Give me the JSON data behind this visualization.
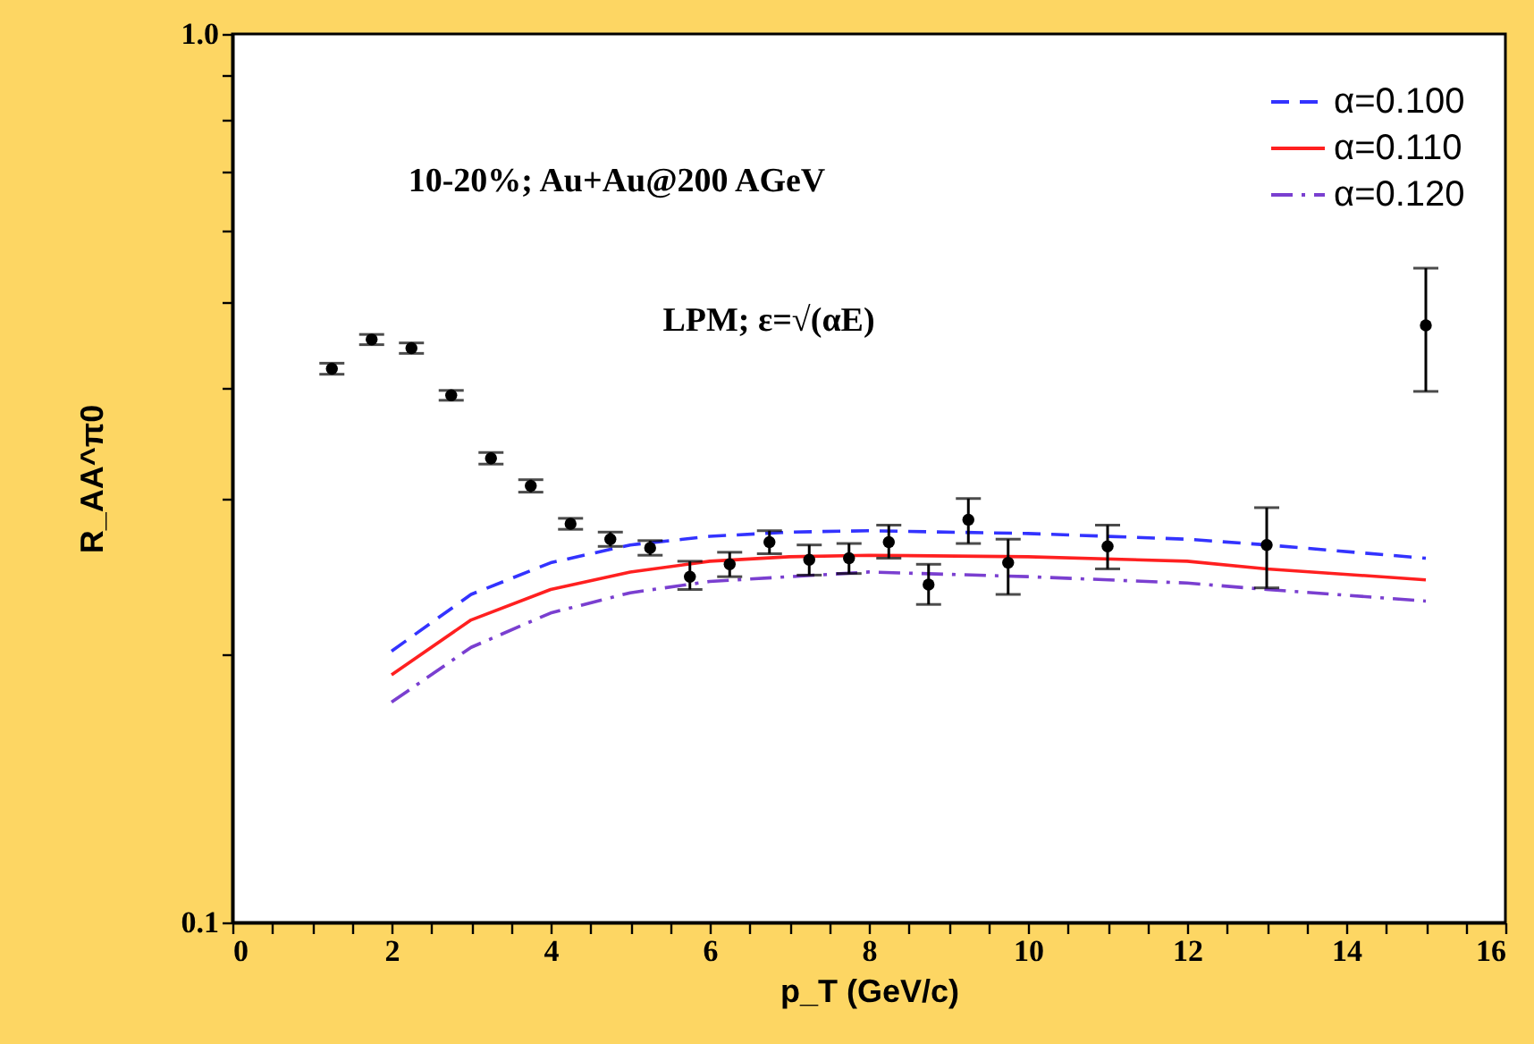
{
  "chart_data": {
    "type": "line",
    "xlabel": "p_T (GeV/c)",
    "ylabel": "R_AA^π0",
    "annotations": [
      "10-20%; Au+Au@200 AGeV",
      "LPM; ε=√(αE)"
    ],
    "xlim": [
      0,
      16
    ],
    "ylim": [
      0.1,
      1.0
    ],
    "log": "y",
    "grid": false,
    "legend": "top right",
    "xticks": [
      0,
      {
        "value": 0.5,
        "label": null
      },
      {
        "value": 1,
        "label": null
      },
      {
        "value": 1.5,
        "label": null
      },
      2,
      {
        "value": 2.5,
        "label": null
      },
      {
        "value": 3,
        "label": null
      },
      {
        "value": 3.5,
        "label": null
      },
      4,
      {
        "value": 4.5,
        "label": null
      },
      {
        "value": 5,
        "label": null
      },
      {
        "value": 5.5,
        "label": null
      },
      6,
      {
        "value": 6.5,
        "label": null
      },
      {
        "value": 7,
        "label": null
      },
      {
        "value": 7.5,
        "label": null
      },
      8,
      {
        "value": 8.5,
        "label": null
      },
      {
        "value": 9,
        "label": null
      },
      {
        "value": 9.5,
        "label": null
      },
      10,
      {
        "value": 10.5,
        "label": null
      },
      {
        "value": 11,
        "label": null
      },
      {
        "value": 11.5,
        "label": null
      },
      12,
      {
        "value": 12.5,
        "label": null
      },
      {
        "value": 13,
        "label": null
      },
      {
        "value": 13.5,
        "label": null
      },
      14,
      {
        "value": 14.5,
        "label": null
      },
      {
        "value": 15,
        "label": null
      },
      {
        "value": 15.5,
        "label": null
      },
      16
    ],
    "yticks": [
      {
        "value": 0.1,
        "label": "0.1"
      },
      {
        "value": 0.2,
        "label": null
      },
      {
        "value": 0.3,
        "label": null
      },
      {
        "value": 0.4,
        "label": null
      },
      {
        "value": 0.5,
        "label": null
      },
      {
        "value": 0.6,
        "label": null
      },
      {
        "value": 0.7,
        "label": null
      },
      {
        "value": 0.8,
        "label": null
      },
      {
        "value": 0.9,
        "label": null
      },
      {
        "value": 1.0,
        "label": "1.0"
      }
    ],
    "series": [
      {
        "name": "α=0.100",
        "color": "#3333ff",
        "line_style": "dashed",
        "x": [
          2,
          3,
          4,
          5,
          6,
          7,
          8,
          10,
          12,
          13,
          15
        ],
        "values": [
          0.202,
          0.234,
          0.254,
          0.266,
          0.272,
          0.275,
          0.276,
          0.274,
          0.27,
          0.266,
          0.257
        ]
      },
      {
        "name": "α=0.110",
        "color": "#ff2020",
        "line_style": "solid",
        "x": [
          2,
          3,
          4,
          5,
          6,
          7,
          8,
          10,
          12,
          13,
          15
        ],
        "values": [
          0.19,
          0.219,
          0.237,
          0.248,
          0.255,
          0.258,
          0.259,
          0.258,
          0.255,
          0.25,
          0.243
        ]
      },
      {
        "name": "α=0.120",
        "color": "#7a3fd0",
        "line_style": "dotted",
        "x": [
          2,
          3,
          4,
          5,
          6,
          7,
          8,
          10,
          12,
          13,
          15
        ],
        "values": [
          0.177,
          0.204,
          0.223,
          0.235,
          0.242,
          0.245,
          0.248,
          0.245,
          0.241,
          0.237,
          0.23
        ]
      },
      {
        "type": "scatter",
        "color": "#000000",
        "marker": "circle",
        "x": [
          1.25,
          1.75,
          2.25,
          2.75,
          3.25,
          3.75,
          4.25,
          4.75,
          5.25,
          5.75,
          6.25,
          6.75,
          7.25,
          7.75,
          8.25,
          8.75,
          9.25,
          9.75,
          11,
          13,
          15
        ],
        "values": [
          0.42,
          0.453,
          0.443,
          0.392,
          0.333,
          0.31,
          0.281,
          0.27,
          0.264,
          0.245,
          0.253,
          0.268,
          0.256,
          0.257,
          0.268,
          0.24,
          0.284,
          0.254,
          0.265,
          0.266,
          0.47
        ],
        "errors": [
          0.006,
          0.006,
          0.006,
          0.005,
          0.005,
          0.005,
          0.004,
          0.005,
          0.005,
          [
            0.237,
            0.255
          ],
          0.008,
          0.008,
          0.01,
          0.01,
          [
            0.257,
            0.28
          ],
          [
            0.228,
            0.253
          ],
          [
            0.267,
            0.3
          ],
          [
            0.234,
            0.27
          ],
          [
            0.25,
            0.28
          ],
          [
            0.238,
            0.293
          ],
          [
            0.396,
            0.545
          ]
        ]
      }
    ]
  }
}
